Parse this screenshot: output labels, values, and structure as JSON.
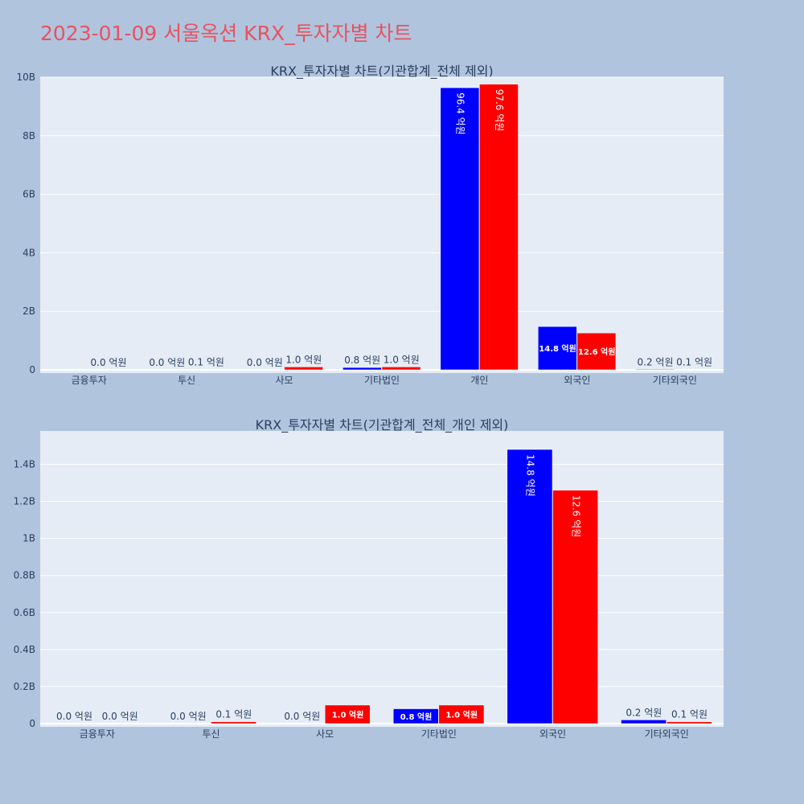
{
  "page_title": "2023-01-09 서울옥션 KRX_투자자별 차트",
  "colors": {
    "background": "#b0c4de",
    "plot_background": "#e5ecf6",
    "title": "#e8525f",
    "series_1": "#0000ff",
    "series_2": "#ff0000"
  },
  "chart_data": [
    {
      "type": "bar",
      "title": "KRX_투자자별 차트(기관합계_전체 제외)",
      "categories": [
        "금융투자",
        "투신",
        "사모",
        "기타법인",
        "개인",
        "외국인",
        "기타외국인"
      ],
      "yticks": [
        "0",
        "2B",
        "4B",
        "6B",
        "8B",
        "10B"
      ],
      "ylim": [
        0,
        10000000000
      ],
      "grid": true,
      "series": [
        {
          "color": "#0000ff",
          "values": [
            0,
            0,
            0,
            80000000,
            9640000000,
            1480000000,
            20000000
          ],
          "labels": [
            "",
            "0.0 억원",
            "0.0 억원",
            "0.8 억원",
            "96.4 억원",
            "14.8 억원",
            "0.2 억원"
          ]
        },
        {
          "color": "#ff0000",
          "values": [
            0,
            10000000,
            100000000,
            100000000,
            9760000000,
            1260000000,
            10000000
          ],
          "labels": [
            "0.0 억원",
            "0.1 억원",
            "1.0 억원",
            "1.0 억원",
            "97.6 억원",
            "12.6 억원",
            "0.1 억원"
          ]
        }
      ]
    },
    {
      "type": "bar",
      "title": "KRX_투자자별 차트(기관합계_전체_개인 제외)",
      "categories": [
        "금융투자",
        "투신",
        "사모",
        "기타법인",
        "외국인",
        "기타외국인"
      ],
      "yticks": [
        "0",
        "0.2B",
        "0.4B",
        "0.6B",
        "0.8B",
        "1B",
        "1.2B",
        "1.4B"
      ],
      "ylim": [
        0,
        1580000000
      ],
      "grid": true,
      "series": [
        {
          "color": "#0000ff",
          "values": [
            0,
            0,
            0,
            80000000,
            1480000000,
            20000000
          ],
          "labels": [
            "0.0 억원",
            "0.0 억원",
            "0.0 억원",
            "0.8 억원",
            "14.8 억원",
            "0.2 억원"
          ]
        },
        {
          "color": "#ff0000",
          "values": [
            0,
            10000000,
            100000000,
            100000000,
            1260000000,
            10000000
          ],
          "labels": [
            "0.0 억원",
            "0.1 억원",
            "1.0 억원",
            "1.0 억원",
            "12.6 억원",
            "0.1 억원"
          ]
        }
      ]
    }
  ]
}
